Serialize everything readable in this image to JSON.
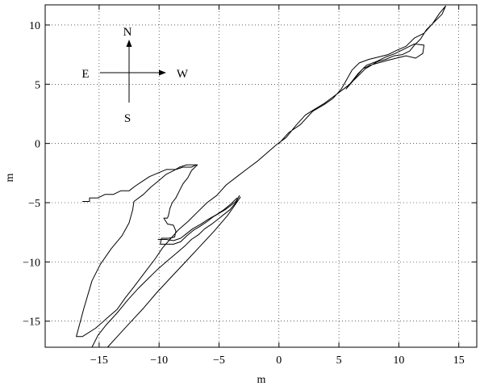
{
  "chart_data": {
    "type": "line",
    "title": "",
    "xlabel": "m",
    "ylabel": "m",
    "xlim": [
      -19.5,
      16.5
    ],
    "ylim": [
      -17.2,
      11.7
    ],
    "xticks": [
      -15,
      -10,
      -5,
      0,
      5,
      10,
      15
    ],
    "yticks": [
      -15,
      -10,
      -5,
      0,
      5,
      10
    ],
    "xtick_labels": [
      "−15",
      "−10",
      "−5",
      "0",
      "5",
      "10",
      "15"
    ],
    "ytick_labels": [
      "−15",
      "−10",
      "−5",
      "0",
      "5",
      "10"
    ],
    "grid": true,
    "grid_style": "dotted",
    "line_color": "#000000",
    "compass": {
      "north": "N",
      "south": "S",
      "east": "E",
      "west": "W"
    },
    "series": [
      {
        "values": [
          [
            0,
            0
          ],
          [
            0.8,
            0.9
          ],
          [
            1.8,
            1.6
          ],
          [
            2.8,
            2.7
          ],
          [
            3.8,
            3.3
          ],
          [
            4.5,
            3.8
          ],
          [
            5.2,
            4.6
          ],
          [
            5.6,
            5.3
          ],
          [
            6.1,
            6.2
          ],
          [
            6.7,
            6.8
          ],
          [
            7.5,
            7.1
          ],
          [
            8.3,
            7.3
          ],
          [
            9.1,
            7.5
          ],
          [
            9.9,
            7.9
          ],
          [
            10.6,
            8.2
          ],
          [
            11.3,
            8.9
          ],
          [
            12.1,
            9.3
          ],
          [
            12.8,
            10.1
          ],
          [
            13.4,
            11.0
          ],
          [
            13.9,
            11.6
          ],
          [
            13.6,
            10.9
          ],
          [
            13.0,
            10.3
          ],
          [
            12.3,
            9.6
          ],
          [
            11.8,
            8.8
          ],
          [
            11.3,
            8.3
          ],
          [
            10.9,
            7.8
          ],
          [
            10.3,
            7.5
          ],
          [
            9.6,
            7.4
          ],
          [
            8.9,
            7.1
          ],
          [
            8.2,
            6.9
          ],
          [
            7.7,
            6.6
          ],
          [
            7.2,
            6.3
          ],
          [
            6.7,
            5.8
          ],
          [
            6.2,
            5.3
          ],
          [
            5.6,
            4.6
          ],
          [
            5.9,
            5.0
          ],
          [
            6.6,
            5.9
          ],
          [
            7.3,
            6.6
          ],
          [
            8.1,
            6.9
          ],
          [
            8.9,
            7.3
          ],
          [
            9.7,
            7.6
          ],
          [
            10.5,
            8.0
          ],
          [
            11.3,
            8.4
          ],
          [
            12.1,
            8.3
          ],
          [
            12.0,
            7.6
          ],
          [
            11.4,
            7.2
          ],
          [
            10.6,
            7.4
          ],
          [
            9.8,
            7.2
          ],
          [
            9.0,
            7.0
          ],
          [
            8.3,
            6.8
          ],
          [
            7.6,
            6.6
          ],
          [
            7.0,
            6.3
          ],
          [
            6.4,
            5.6
          ],
          [
            5.9,
            5.0
          ],
          [
            5.4,
            4.6
          ],
          [
            4.6,
            4.0
          ],
          [
            3.8,
            3.4
          ],
          [
            3.0,
            2.9
          ],
          [
            2.2,
            2.4
          ],
          [
            1.4,
            1.5
          ],
          [
            0.6,
            0.5
          ],
          [
            -0.2,
            -0.1
          ],
          [
            -1.0,
            -0.8
          ],
          [
            -1.8,
            -1.5
          ],
          [
            -2.6,
            -2.1
          ],
          [
            -3.5,
            -2.8
          ],
          [
            -4.4,
            -3.5
          ],
          [
            -5.2,
            -4.4
          ],
          [
            -6.0,
            -5.0
          ],
          [
            -6.8,
            -5.8
          ],
          [
            -7.6,
            -6.6
          ],
          [
            -8.4,
            -7.3
          ],
          [
            -9.0,
            -8.0
          ],
          [
            -9.7,
            -8.8
          ],
          [
            -10.3,
            -9.7
          ],
          [
            -10.9,
            -10.5
          ],
          [
            -11.5,
            -11.3
          ],
          [
            -12.1,
            -12.1
          ],
          [
            -12.8,
            -13.0
          ],
          [
            -13.5,
            -14.0
          ],
          [
            -14.4,
            -14.8
          ],
          [
            -15.3,
            -15.6
          ],
          [
            -16.4,
            -16.3
          ],
          [
            -16.9,
            -16.3
          ],
          [
            -16.3,
            -14.0
          ],
          [
            -15.6,
            -11.6
          ],
          [
            -14.9,
            -10.2
          ],
          [
            -14.0,
            -8.9
          ],
          [
            -13.1,
            -7.8
          ],
          [
            -12.5,
            -6.7
          ],
          [
            -12.2,
            -5.6
          ],
          [
            -12.1,
            -4.9
          ],
          [
            -11.3,
            -4.3
          ],
          [
            -10.7,
            -3.7
          ],
          [
            -10.1,
            -3.2
          ],
          [
            -9.4,
            -2.6
          ],
          [
            -8.8,
            -2.3
          ],
          [
            -8.3,
            -2.0
          ],
          [
            -7.7,
            -1.8
          ],
          [
            -6.8,
            -1.8
          ],
          [
            -7.3,
            -2.3
          ],
          [
            -7.6,
            -2.9
          ],
          [
            -8.0,
            -3.4
          ],
          [
            -8.3,
            -4.0
          ],
          [
            -8.6,
            -4.6
          ],
          [
            -8.9,
            -5.0
          ],
          [
            -9.1,
            -5.5
          ],
          [
            -9.2,
            -6.0
          ],
          [
            -9.3,
            -6.3
          ],
          [
            -9.6,
            -6.3
          ],
          [
            -9.3,
            -6.8
          ],
          [
            -8.8,
            -6.9
          ],
          [
            -8.6,
            -7.4
          ],
          [
            -8.7,
            -7.9
          ],
          [
            -9.2,
            -8.0
          ],
          [
            -9.8,
            -8.0
          ],
          [
            -9.9,
            -8.5
          ],
          [
            -9.4,
            -8.5
          ],
          [
            -8.8,
            -8.5
          ],
          [
            -8.2,
            -8.3
          ],
          [
            -7.7,
            -7.8
          ],
          [
            -7.1,
            -7.3
          ],
          [
            -6.6,
            -7.0
          ],
          [
            -6.0,
            -6.6
          ],
          [
            -5.5,
            -6.2
          ],
          [
            -5.0,
            -5.9
          ],
          [
            -4.5,
            -5.6
          ],
          [
            -4.1,
            -5.3
          ],
          [
            -3.6,
            -4.9
          ],
          [
            -3.3,
            -4.4
          ],
          [
            -3.6,
            -5.0
          ],
          [
            -4.1,
            -5.6
          ],
          [
            -4.6,
            -6.0
          ],
          [
            -5.1,
            -6.4
          ],
          [
            -5.6,
            -6.8
          ],
          [
            -6.2,
            -7.2
          ],
          [
            -6.7,
            -7.7
          ],
          [
            -7.3,
            -8.1
          ],
          [
            -7.9,
            -8.7
          ],
          [
            -8.6,
            -9.3
          ],
          [
            -9.3,
            -9.9
          ],
          [
            -10.1,
            -10.6
          ],
          [
            -10.9,
            -11.4
          ],
          [
            -11.7,
            -12.2
          ],
          [
            -12.6,
            -13.2
          ],
          [
            -13.5,
            -14.3
          ],
          [
            -14.4,
            -15.3
          ],
          [
            -15.1,
            -16.2
          ],
          [
            -15.6,
            -17.2
          ]
        ]
      },
      {
        "values": [
          [
            -14.3,
            -17.2
          ],
          [
            -13.4,
            -16.2
          ],
          [
            -12.4,
            -15.1
          ],
          [
            -11.3,
            -13.9
          ],
          [
            -10.2,
            -12.6
          ],
          [
            -9.0,
            -11.3
          ],
          [
            -7.8,
            -10.0
          ],
          [
            -6.6,
            -8.7
          ],
          [
            -5.4,
            -7.4
          ],
          [
            -4.3,
            -6.1
          ],
          [
            -3.4,
            -4.8
          ],
          [
            -3.2,
            -4.5
          ]
        ]
      },
      {
        "values": [
          [
            -16.4,
            -4.9
          ],
          [
            -15.8,
            -4.9
          ],
          [
            -15.8,
            -4.6
          ],
          [
            -15.1,
            -4.6
          ],
          [
            -14.5,
            -4.3
          ],
          [
            -13.8,
            -4.3
          ],
          [
            -13.2,
            -4.0
          ],
          [
            -12.5,
            -4.0
          ],
          [
            -12.0,
            -3.6
          ],
          [
            -11.4,
            -3.2
          ],
          [
            -10.8,
            -2.8
          ],
          [
            -10.1,
            -2.5
          ],
          [
            -9.4,
            -2.2
          ],
          [
            -8.6,
            -2.2
          ],
          [
            -8.0,
            -2.0
          ],
          [
            -7.3,
            -2.0
          ],
          [
            -6.9,
            -1.8
          ]
        ]
      },
      {
        "values": [
          [
            -10.1,
            -8.1
          ],
          [
            -9.4,
            -8.1
          ],
          [
            -8.8,
            -8.2
          ],
          [
            -8.2,
            -8.0
          ],
          [
            -7.7,
            -7.6
          ],
          [
            -7.2,
            -7.2
          ],
          [
            -6.5,
            -6.8
          ],
          [
            -5.9,
            -6.4
          ],
          [
            -5.2,
            -6.0
          ],
          [
            -4.6,
            -5.6
          ],
          [
            -4.0,
            -5.1
          ],
          [
            -3.5,
            -4.6
          ]
        ]
      }
    ]
  }
}
